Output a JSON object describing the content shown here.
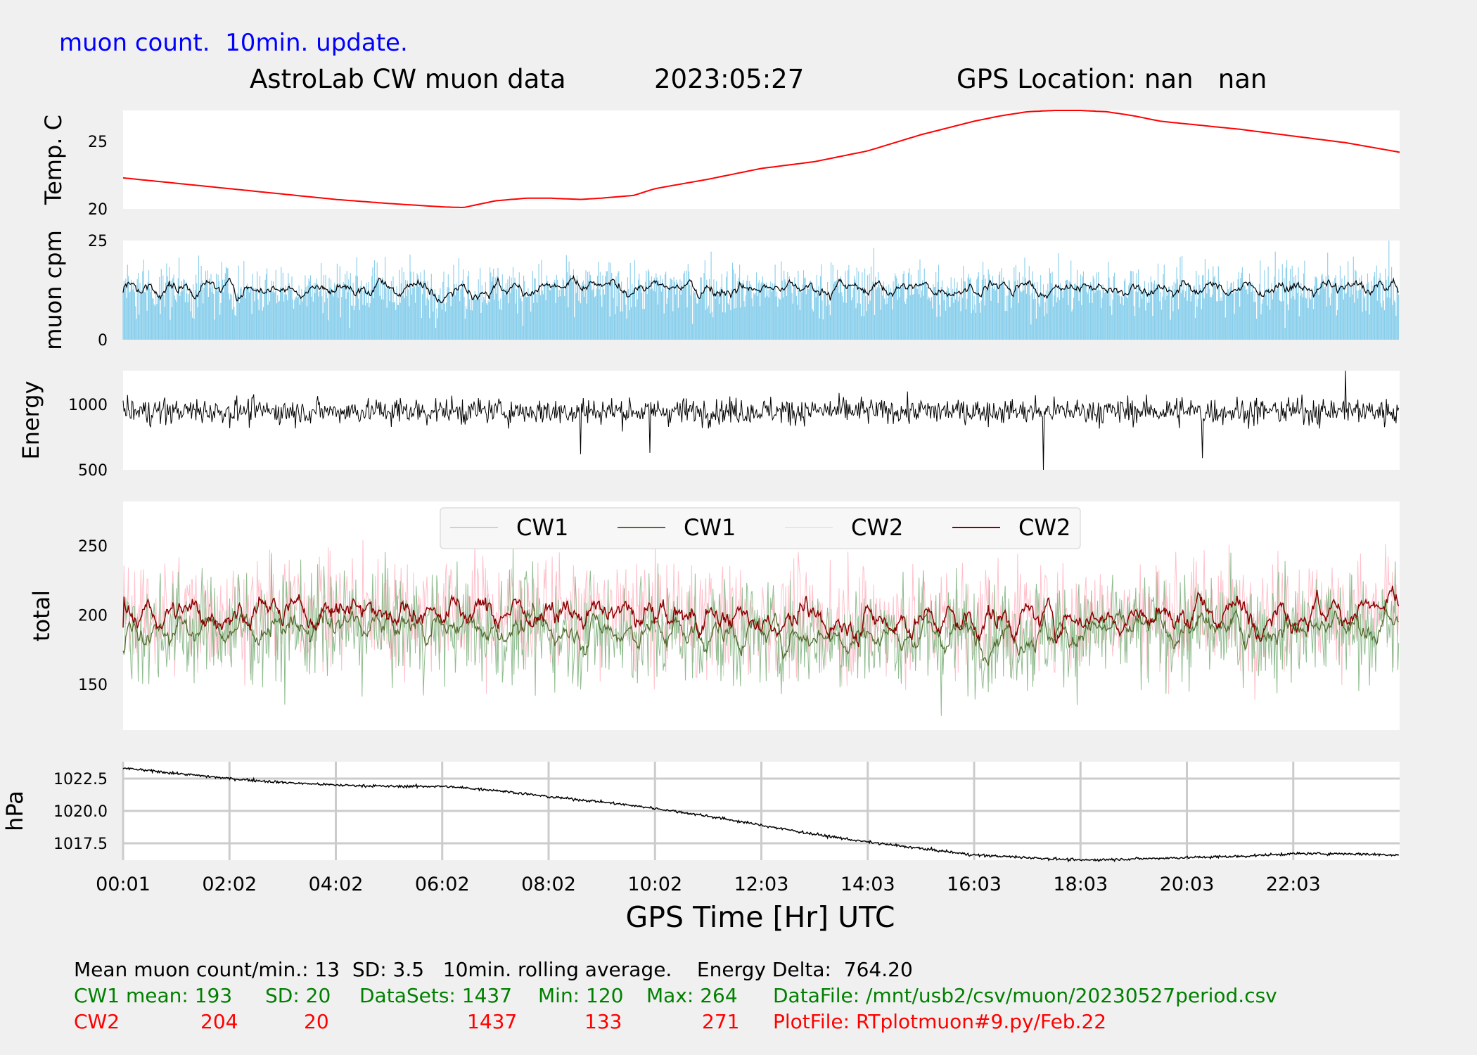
{
  "header": {
    "note": "muon count.  10min. update.",
    "title": "AstroLab CW muon data",
    "date": "2023:05:27",
    "gps": "GPS Location: nan   nan"
  },
  "xlabel": "GPS Time  [Hr] UTC",
  "xticks": [
    "00:01",
    "02:02",
    "04:02",
    "06:02",
    "08:02",
    "10:02",
    "12:03",
    "14:03",
    "16:03",
    "18:03",
    "20:03",
    "22:03"
  ],
  "footer": {
    "line1": "Mean muon count/min.: 13  SD: 3.5   10min. rolling average.    Energy Delta:  764.20",
    "cw1": {
      "label": "CW1 mean: 193",
      "sd": "SD: 20",
      "datasets": "DataSets: 1437",
      "min": "Min: 120",
      "max": "Max: 264",
      "file": "DataFile: /mnt/usb2/csv/muon/20230527period.csv"
    },
    "cw2": {
      "label": "CW2",
      "mean": "204",
      "sd": "20",
      "datasets": "1437",
      "min": "133",
      "max": "271",
      "file": "PlotFile: RTplotmuon#9.py/Feb.22"
    }
  },
  "colors": {
    "temp": "#ff0000",
    "muon_bar": "#87ceeb",
    "black": "#000000",
    "cw1_raw": "#8fbc8f",
    "cw1_avg": "#556b2f",
    "cw2_raw": "#ffc0cb",
    "cw2_avg": "#8b0000",
    "blue": "#0000ff",
    "green": "#008000",
    "red": "#ff0000"
  },
  "chart_data": [
    {
      "type": "line",
      "ylabel": "Temp. C",
      "yticks": [
        20,
        25
      ],
      "ylim": [
        20,
        27.3
      ],
      "series": [
        {
          "x": [
            0,
            1,
            2,
            3,
            4,
            5,
            6,
            6.4,
            7,
            7.6,
            8,
            8.6,
            9,
            9.6,
            10,
            11,
            12,
            13,
            14,
            15,
            16,
            16.5,
            17,
            17.5,
            18,
            18.5,
            19,
            19.5,
            20,
            21,
            22,
            23,
            24
          ],
          "y": [
            22.3,
            21.9,
            21.5,
            21.1,
            20.7,
            20.4,
            20.15,
            20.1,
            20.6,
            20.8,
            20.8,
            20.7,
            20.8,
            21.0,
            21.5,
            22.2,
            23.0,
            23.5,
            24.3,
            25.5,
            26.5,
            26.9,
            27.2,
            27.3,
            27.3,
            27.2,
            26.9,
            26.5,
            26.3,
            25.9,
            25.4,
            24.9,
            24.2
          ]
        }
      ],
      "grid": false
    },
    {
      "type": "bar",
      "ylabel": "muon cpm",
      "yticks": [
        0,
        25
      ],
      "ylim": [
        0,
        25
      ],
      "series": [
        {
          "name": "per-minute counts",
          "mean": 13,
          "sd": 3.5,
          "count": 1437
        },
        {
          "name": "10min. rolling average",
          "mean": 13
        }
      ],
      "grid": false
    },
    {
      "type": "line",
      "ylabel": "Energy",
      "yticks": [
        500,
        1000
      ],
      "ylim": [
        500,
        1260
      ],
      "series": [
        {
          "mean": 950,
          "sd": 50,
          "spikes": [
            {
              "x": 17.3,
              "y": 1060
            },
            {
              "x": 17.3,
              "y": 500
            },
            {
              "x": 22.98,
              "y": 1260
            },
            {
              "x": 8.6,
              "y": 620
            },
            {
              "x": 9.9,
              "y": 630
            },
            {
              "x": 20.3,
              "y": 590
            }
          ]
        }
      ],
      "grid": false
    },
    {
      "type": "line",
      "ylabel": "total",
      "yticks": [
        150,
        200,
        250
      ],
      "ylim": [
        117,
        282
      ],
      "legend": "top-center",
      "series": [
        {
          "name": "CW1",
          "kind": "raw",
          "mean": 193,
          "sd": 20,
          "min": 120,
          "max": 264
        },
        {
          "name": "CW1",
          "kind": "rolling",
          "mean": 193
        },
        {
          "name": "CW2",
          "kind": "raw",
          "mean": 204,
          "sd": 20,
          "min": 133,
          "max": 271
        },
        {
          "name": "CW2",
          "kind": "rolling",
          "mean": 204
        }
      ],
      "grid": false
    },
    {
      "type": "line",
      "ylabel": "hPa",
      "yticks": [
        1017.5,
        1020.0,
        1022.5
      ],
      "ylim": [
        1016.2,
        1023.8
      ],
      "series": [
        {
          "x": [
            0,
            1,
            2,
            3,
            4,
            5,
            6,
            7,
            8,
            9,
            10,
            11,
            12,
            13,
            14,
            15,
            16,
            17,
            18,
            19,
            20,
            21,
            22,
            23,
            24
          ],
          "y": [
            1023.3,
            1022.9,
            1022.5,
            1022.2,
            1022.0,
            1021.9,
            1021.9,
            1021.6,
            1021.1,
            1020.7,
            1020.2,
            1019.6,
            1018.9,
            1018.2,
            1017.6,
            1017.1,
            1016.6,
            1016.4,
            1016.2,
            1016.3,
            1016.4,
            1016.5,
            1016.7,
            1016.7,
            1016.6
          ]
        }
      ],
      "grid": true
    }
  ]
}
